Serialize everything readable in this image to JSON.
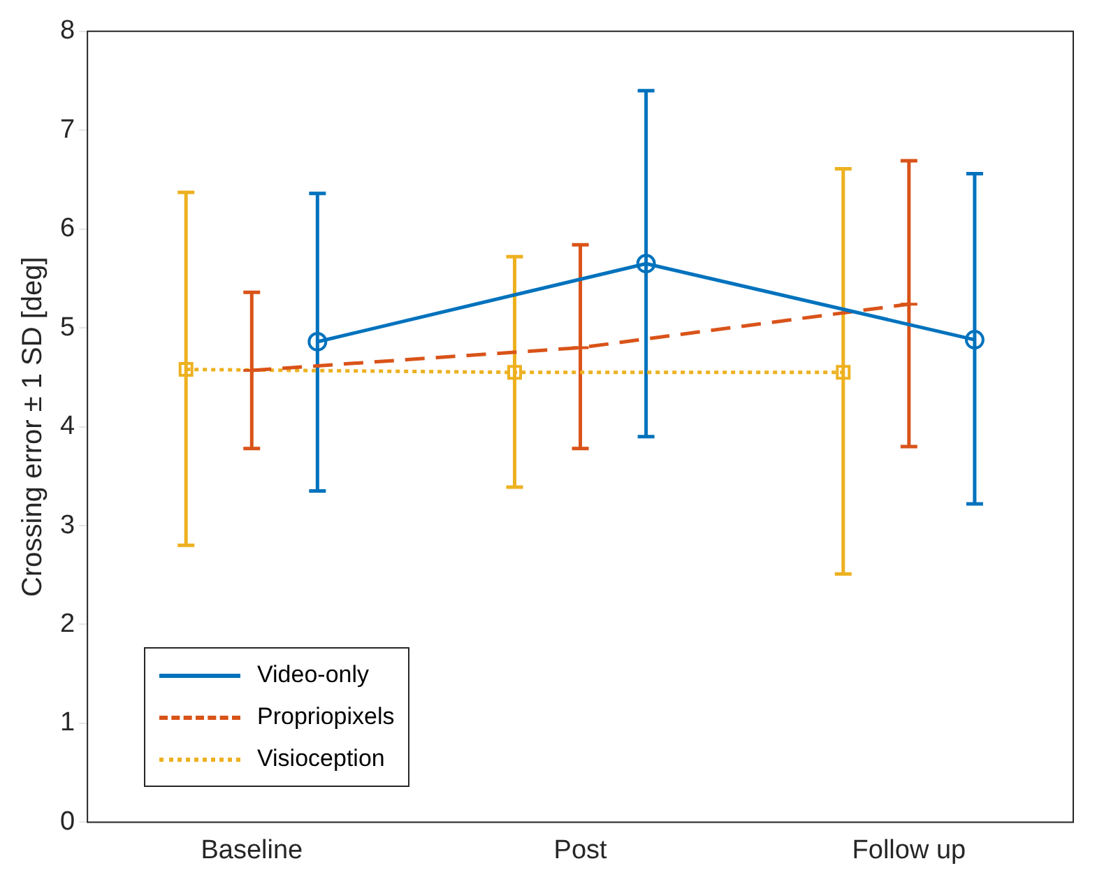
{
  "chart_data": {
    "type": "line",
    "ylabel": "Crossing error ± 1 SD [deg]",
    "categories": [
      "Baseline",
      "Post",
      "Follow up"
    ],
    "ylim": [
      0,
      8
    ],
    "yticks": [
      0,
      1,
      2,
      3,
      4,
      5,
      6,
      7,
      8
    ],
    "grid": false,
    "legend": "bottom left",
    "series": [
      {
        "name": "Video-only",
        "color": "#0072bd",
        "marker": "circle",
        "line_style": "solid",
        "values": [
          4.86,
          5.65,
          4.88
        ],
        "errors": [
          [
            3.35,
            6.36
          ],
          [
            3.9,
            7.4
          ],
          [
            3.22,
            6.56
          ]
        ]
      },
      {
        "name": "Propriopixels",
        "color": "#d95319",
        "marker": "cross",
        "line_style": "dashed",
        "values": [
          4.57,
          4.8,
          5.24
        ],
        "errors": [
          [
            3.78,
            5.36
          ],
          [
            3.78,
            5.84
          ],
          [
            3.8,
            6.69
          ]
        ]
      },
      {
        "name": "Visioception",
        "color": "#edb120",
        "marker": "square",
        "line_style": "dotted",
        "values": [
          4.58,
          4.55,
          4.55
        ],
        "errors": [
          [
            2.8,
            6.37
          ],
          [
            3.39,
            5.72
          ],
          [
            2.51,
            6.61
          ]
        ]
      }
    ]
  }
}
